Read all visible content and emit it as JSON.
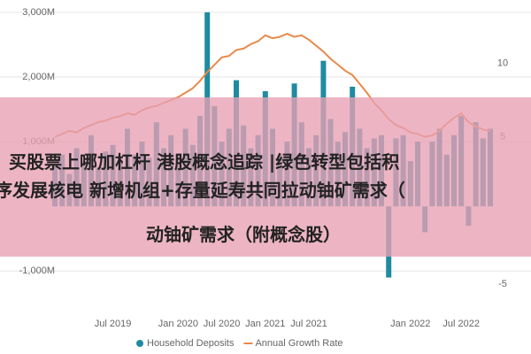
{
  "chart_data": {
    "type": "bar",
    "categories": [
      null,
      null,
      null,
      null,
      null,
      null,
      null,
      null,
      "Jul 2019",
      null,
      null,
      null,
      null,
      null,
      null,
      null,
      null,
      "Jan 2020",
      null,
      null,
      null,
      null,
      null,
      "Jul 2020",
      null,
      null,
      null,
      null,
      null,
      "Jan 2021",
      null,
      null,
      null,
      null,
      null,
      "Jul 2021",
      null,
      null,
      null,
      null,
      null,
      null,
      null,
      null,
      null,
      null,
      null,
      null,
      null,
      "Jan 2022",
      null,
      null,
      null,
      null,
      null,
      null,
      "Jul 2022",
      null,
      null,
      null,
      null
    ],
    "series": [
      {
        "name": "Household Deposits",
        "color": "#1f8ba0",
        "values": [
          650,
          800,
          500,
          900,
          700,
          1100,
          600,
          850,
          950,
          700,
          1200,
          800,
          1000,
          750,
          1300,
          900,
          1100,
          800,
          1200,
          950,
          1400,
          3000,
          1550,
          1000,
          1200,
          1950,
          1250,
          900,
          1100,
          1780,
          1200,
          800,
          1000,
          1900,
          1300,
          900,
          1100,
          2250,
          1350,
          1000,
          1150,
          1850,
          1200,
          900,
          1050,
          1100,
          -1100,
          1050,
          1100,
          700,
          1000,
          -400,
          1000,
          1200,
          800,
          1100,
          1400,
          -300,
          1300,
          1050,
          1200
        ]
      },
      {
        "name": "Annual Growth Rate",
        "color": "#e8894a",
        "type": "line",
        "axis": "y2",
        "values": [
          5.0,
          5.2,
          5.4,
          5.3,
          5.6,
          5.8,
          6.0,
          6.1,
          6.3,
          6.4,
          6.6,
          6.5,
          6.8,
          7.0,
          7.1,
          7.3,
          7.5,
          7.7,
          8.0,
          8.3,
          8.8,
          9.4,
          9.9,
          10.4,
          10.5,
          10.9,
          11.0,
          11.3,
          11.5,
          11.9,
          11.7,
          11.8,
          12.0,
          11.8,
          11.9,
          11.6,
          11.2,
          10.8,
          10.3,
          9.9,
          9.5,
          9.2,
          8.6,
          8.0,
          7.3,
          6.8,
          6.2,
          5.8,
          5.6,
          5.3,
          5.2,
          5.0,
          5.1,
          5.4,
          5.9,
          6.3,
          6.6,
          6.0,
          5.7,
          5.5,
          5.4
        ]
      }
    ],
    "ylim": [
      -1530,
      3190
    ],
    "yticks": [
      {
        "value": -1000,
        "label": "-1,000M"
      },
      {
        "value": 1000,
        "label": "1,000M"
      },
      {
        "value": 2000,
        "label": "2,000M"
      },
      {
        "value": 3000,
        "label": "3,000M"
      }
    ],
    "y2lim": [
      -6.45,
      14.3
    ],
    "y2ticks": [
      -5,
      5,
      10
    ],
    "grid": true,
    "legend": "bottom"
  },
  "overlay": {
    "lines": [
      "买股票上哪加杠杆 港股概念追踪 |绿色转型包括积",
      "序发展核电   新增机组+存量延寿共同拉动铀矿需求（",
      "动铀矿需求（附概念股）"
    ]
  }
}
